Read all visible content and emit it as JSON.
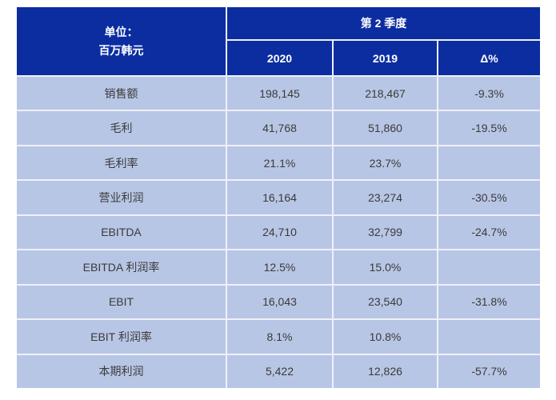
{
  "chart_data": {
    "type": "table",
    "unit_header": {
      "line1": "单位：",
      "line2": "百万韩元"
    },
    "group_header": "第 2 季度",
    "columns": [
      "2020",
      "2019",
      "Δ%"
    ],
    "rows": [
      {
        "label": "销售额",
        "y2020": "198,145",
        "y2019": "218,467",
        "delta": "-9.3%"
      },
      {
        "label": "毛利",
        "y2020": "41,768",
        "y2019": "51,860",
        "delta": "-19.5%"
      },
      {
        "label": "毛利率",
        "y2020": "21.1%",
        "y2019": "23.7%",
        "delta": ""
      },
      {
        "label": "营业利润",
        "y2020": "16,164",
        "y2019": "23,274",
        "delta": "-30.5%"
      },
      {
        "label": "EBITDA",
        "y2020": "24,710",
        "y2019": "32,799",
        "delta": "-24.7%"
      },
      {
        "label": "EBITDA 利润率",
        "y2020": "12.5%",
        "y2019": "15.0%",
        "delta": ""
      },
      {
        "label": "EBIT",
        "y2020": "16,043",
        "y2019": "23,540",
        "delta": "-31.8%"
      },
      {
        "label": "EBIT 利润率",
        "y2020": "8.1%",
        "y2019": "10.8%",
        "delta": ""
      },
      {
        "label": "本期利润",
        "y2020": "5,422",
        "y2019": "12,826",
        "delta": "-57.7%"
      }
    ]
  },
  "colors": {
    "header_bg": "#0c2da0",
    "header_text": "#ffffff",
    "body_bg": "#b8c6e5",
    "body_text": "#3a3a3a",
    "grid": "#eef1f8",
    "page_bg": "#ffffff"
  }
}
